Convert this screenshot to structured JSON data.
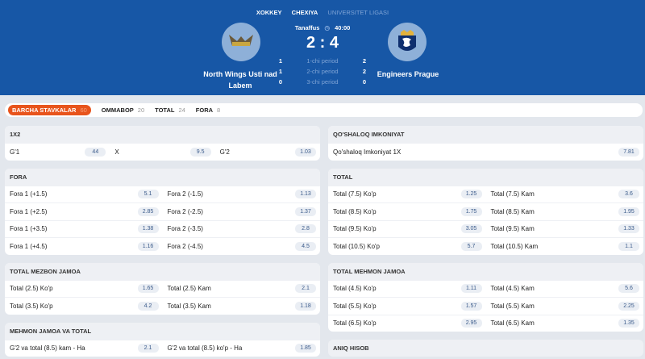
{
  "header": {
    "breadcrumbs": [
      "XOKKEY",
      "CHEXIYA",
      "UNIVERSITET LIGASI"
    ],
    "status": "Tanaffus",
    "time": "40:00",
    "score": "2 : 4",
    "home": {
      "name": "North Wings Usti nad Labem"
    },
    "away": {
      "name": "Engineers Prague"
    },
    "periods": [
      {
        "label": "1-chi period",
        "home": "1",
        "away": "2"
      },
      {
        "label": "2-chi period",
        "home": "1",
        "away": "2"
      },
      {
        "label": "3-chi period",
        "home": "0",
        "away": "0"
      }
    ]
  },
  "tabs": [
    {
      "label": "BARCHA STAVKALAR",
      "count": "60"
    },
    {
      "label": "OMMABOP",
      "count": "20"
    },
    {
      "label": "TOTAL",
      "count": "24"
    },
    {
      "label": "FORA",
      "count": "8"
    }
  ],
  "left": [
    {
      "title": "1X2",
      "rows": [
        [
          [
            "G'1",
            "44"
          ],
          [
            "X",
            "9.5"
          ],
          [
            "G'2",
            "1.03"
          ]
        ]
      ]
    },
    {
      "title": "FORA",
      "rows": [
        [
          [
            "Fora 1 (+1.5)",
            "5.1"
          ],
          [
            "Fora 2 (-1.5)",
            "1.13"
          ]
        ],
        [
          [
            "Fora 1 (+2.5)",
            "2.85"
          ],
          [
            "Fora 2 (-2.5)",
            "1.37"
          ]
        ],
        [
          [
            "Fora 1 (+3.5)",
            "1.38"
          ],
          [
            "Fora 2 (-3.5)",
            "2.8"
          ]
        ],
        [
          [
            "Fora 1 (+4.5)",
            "1.16"
          ],
          [
            "Fora 2 (-4.5)",
            "4.5"
          ]
        ]
      ]
    },
    {
      "title": "TOTAL MEZBON JAMOA",
      "rows": [
        [
          [
            "Total (2.5) Ko'p",
            "1.65"
          ],
          [
            "Total (2.5) Kam",
            "2.1"
          ]
        ],
        [
          [
            "Total (3.5) Ko'p",
            "4.2"
          ],
          [
            "Total (3.5) Kam",
            "1.18"
          ]
        ]
      ]
    },
    {
      "title": "MEHMON JAMOA VA TOTAL",
      "rows": [
        [
          [
            "G'2 va total (8.5) kam - Ha",
            "2.1"
          ],
          [
            "G'2 va total (8.5) ko'p - Ha",
            "1.85"
          ]
        ]
      ]
    }
  ],
  "right": [
    {
      "title": "QO'SHALOQ IMKONIYAT",
      "rows": [
        [
          [
            "Qo'shaloq Imkoniyat 1X",
            "7.81"
          ]
        ]
      ]
    },
    {
      "title": "TOTAL",
      "rows": [
        [
          [
            "Total (7.5) Ko'p",
            "1.25"
          ],
          [
            "Total (7.5) Kam",
            "3.6"
          ]
        ],
        [
          [
            "Total (8.5) Ko'p",
            "1.75"
          ],
          [
            "Total (8.5) Kam",
            "1.95"
          ]
        ],
        [
          [
            "Total (9.5) Ko'p",
            "3.05"
          ],
          [
            "Total (9.5) Kam",
            "1.33"
          ]
        ],
        [
          [
            "Total (10.5) Ko'p",
            "5.7"
          ],
          [
            "Total (10.5) Kam",
            "1.1"
          ]
        ]
      ]
    },
    {
      "title": "TOTAL MEHMON JAMOA",
      "rows": [
        [
          [
            "Total (4.5) Ko'p",
            "1.11"
          ],
          [
            "Total (4.5) Kam",
            "5.6"
          ]
        ],
        [
          [
            "Total (5.5) Ko'p",
            "1.57"
          ],
          [
            "Total (5.5) Kam",
            "2.25"
          ]
        ],
        [
          [
            "Total (6.5) Ko'p",
            "2.95"
          ],
          [
            "Total (6.5) Kam",
            "1.35"
          ]
        ]
      ]
    },
    {
      "title": "ANIQ HISOB",
      "rows": []
    }
  ]
}
